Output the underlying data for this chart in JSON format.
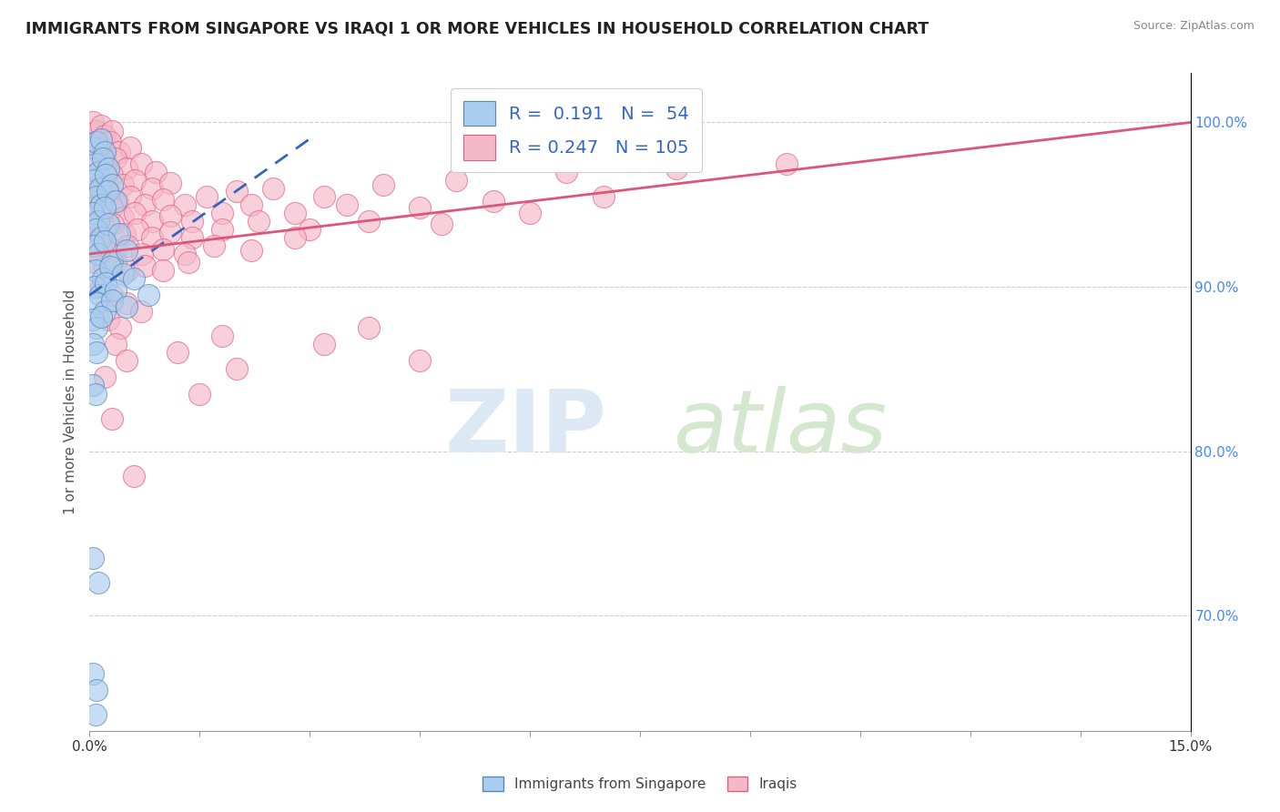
{
  "title": "IMMIGRANTS FROM SINGAPORE VS IRAQI 1 OR MORE VEHICLES IN HOUSEHOLD CORRELATION CHART",
  "source": "Source: ZipAtlas.com",
  "ylabel": "1 or more Vehicles in Household",
  "y_ticks_right": [
    70.0,
    80.0,
    90.0,
    100.0
  ],
  "y_ticks_right_labels": [
    "70.0%",
    "80.0%",
    "90.0%",
    "100.0%"
  ],
  "x_min": 0.0,
  "x_max": 15.0,
  "y_min": 63.0,
  "y_max": 103.0,
  "legend_entries": [
    {
      "label": "Immigrants from Singapore",
      "R": 0.191,
      "N": 54
    },
    {
      "label": "Iraqis",
      "R": 0.247,
      "N": 105
    }
  ],
  "singapore_color": "#aaccee",
  "singapore_edge": "#5588bb",
  "iraq_color": "#f5b8c8",
  "iraq_edge": "#e06080",
  "singapore_trend_color": "#3366bb",
  "iraq_trend_color": "#dd5577",
  "singapore_points": [
    [
      0.05,
      98.5
    ],
    [
      0.1,
      98.8
    ],
    [
      0.15,
      99.0
    ],
    [
      0.2,
      98.2
    ],
    [
      0.08,
      97.5
    ],
    [
      0.12,
      97.0
    ],
    [
      0.18,
      97.8
    ],
    [
      0.25,
      97.2
    ],
    [
      0.06,
      96.5
    ],
    [
      0.14,
      96.0
    ],
    [
      0.22,
      96.8
    ],
    [
      0.3,
      96.2
    ],
    [
      0.09,
      95.5
    ],
    [
      0.16,
      95.0
    ],
    [
      0.24,
      95.8
    ],
    [
      0.35,
      95.2
    ],
    [
      0.05,
      94.5
    ],
    [
      0.12,
      94.0
    ],
    [
      0.2,
      94.8
    ],
    [
      0.08,
      93.5
    ],
    [
      0.15,
      93.0
    ],
    [
      0.25,
      93.8
    ],
    [
      0.4,
      93.2
    ],
    [
      0.06,
      92.5
    ],
    [
      0.12,
      92.0
    ],
    [
      0.2,
      92.8
    ],
    [
      0.3,
      91.5
    ],
    [
      0.5,
      92.2
    ],
    [
      0.08,
      91.0
    ],
    [
      0.18,
      90.5
    ],
    [
      0.28,
      91.2
    ],
    [
      0.45,
      90.8
    ],
    [
      0.07,
      90.0
    ],
    [
      0.14,
      89.5
    ],
    [
      0.22,
      90.2
    ],
    [
      0.35,
      89.8
    ],
    [
      0.6,
      90.5
    ],
    [
      0.1,
      89.0
    ],
    [
      0.2,
      88.5
    ],
    [
      0.3,
      89.2
    ],
    [
      0.5,
      88.8
    ],
    [
      0.8,
      89.5
    ],
    [
      0.05,
      88.0
    ],
    [
      0.1,
      87.5
    ],
    [
      0.15,
      88.2
    ],
    [
      0.05,
      86.5
    ],
    [
      0.1,
      86.0
    ],
    [
      0.05,
      84.0
    ],
    [
      0.08,
      83.5
    ],
    [
      0.05,
      73.5
    ],
    [
      0.12,
      72.0
    ],
    [
      0.05,
      66.5
    ],
    [
      0.1,
      65.5
    ],
    [
      0.08,
      64.0
    ]
  ],
  "iraq_points": [
    [
      0.05,
      100.0
    ],
    [
      0.1,
      99.5
    ],
    [
      0.15,
      99.8
    ],
    [
      0.2,
      99.2
    ],
    [
      0.3,
      99.5
    ],
    [
      0.08,
      98.8
    ],
    [
      0.18,
      98.5
    ],
    [
      0.28,
      98.8
    ],
    [
      0.4,
      98.2
    ],
    [
      0.55,
      98.5
    ],
    [
      0.12,
      97.8
    ],
    [
      0.22,
      97.5
    ],
    [
      0.35,
      97.8
    ],
    [
      0.5,
      97.2
    ],
    [
      0.7,
      97.5
    ],
    [
      0.9,
      97.0
    ],
    [
      0.08,
      96.8
    ],
    [
      0.18,
      96.5
    ],
    [
      0.3,
      96.8
    ],
    [
      0.45,
      96.2
    ],
    [
      0.62,
      96.5
    ],
    [
      0.85,
      96.0
    ],
    [
      1.1,
      96.3
    ],
    [
      0.06,
      95.8
    ],
    [
      0.15,
      95.5
    ],
    [
      0.25,
      95.8
    ],
    [
      0.38,
      95.2
    ],
    [
      0.55,
      95.5
    ],
    [
      0.75,
      95.0
    ],
    [
      1.0,
      95.3
    ],
    [
      1.3,
      95.0
    ],
    [
      1.6,
      95.5
    ],
    [
      2.0,
      95.8
    ],
    [
      2.5,
      96.0
    ],
    [
      3.2,
      95.5
    ],
    [
      4.0,
      96.2
    ],
    [
      5.0,
      96.5
    ],
    [
      6.5,
      97.0
    ],
    [
      8.0,
      97.2
    ],
    [
      9.5,
      97.5
    ],
    [
      0.08,
      94.8
    ],
    [
      0.18,
      94.5
    ],
    [
      0.3,
      94.8
    ],
    [
      0.45,
      94.2
    ],
    [
      0.62,
      94.5
    ],
    [
      0.85,
      94.0
    ],
    [
      1.1,
      94.3
    ],
    [
      1.4,
      94.0
    ],
    [
      1.8,
      94.5
    ],
    [
      2.2,
      95.0
    ],
    [
      2.8,
      94.5
    ],
    [
      3.5,
      95.0
    ],
    [
      4.5,
      94.8
    ],
    [
      5.5,
      95.2
    ],
    [
      7.0,
      95.5
    ],
    [
      0.08,
      93.8
    ],
    [
      0.2,
      93.5
    ],
    [
      0.32,
      93.8
    ],
    [
      0.48,
      93.2
    ],
    [
      0.65,
      93.5
    ],
    [
      0.85,
      93.0
    ],
    [
      1.1,
      93.3
    ],
    [
      1.4,
      93.0
    ],
    [
      1.8,
      93.5
    ],
    [
      2.3,
      94.0
    ],
    [
      3.0,
      93.5
    ],
    [
      3.8,
      94.0
    ],
    [
      4.8,
      93.8
    ],
    [
      6.0,
      94.5
    ],
    [
      0.1,
      92.8
    ],
    [
      0.22,
      92.5
    ],
    [
      0.35,
      92.2
    ],
    [
      0.52,
      92.5
    ],
    [
      0.72,
      92.0
    ],
    [
      1.0,
      92.3
    ],
    [
      1.3,
      92.0
    ],
    [
      1.7,
      92.5
    ],
    [
      2.2,
      92.2
    ],
    [
      2.8,
      93.0
    ],
    [
      0.08,
      91.5
    ],
    [
      0.2,
      91.2
    ],
    [
      0.35,
      91.5
    ],
    [
      0.52,
      91.0
    ],
    [
      0.75,
      91.3
    ],
    [
      1.0,
      91.0
    ],
    [
      1.35,
      91.5
    ],
    [
      0.15,
      90.0
    ],
    [
      0.3,
      89.5
    ],
    [
      0.5,
      89.0
    ],
    [
      0.7,
      88.5
    ],
    [
      0.25,
      88.0
    ],
    [
      0.42,
      87.5
    ],
    [
      1.8,
      87.0
    ],
    [
      3.8,
      87.5
    ],
    [
      0.35,
      86.5
    ],
    [
      1.2,
      86.0
    ],
    [
      3.2,
      86.5
    ],
    [
      0.5,
      85.5
    ],
    [
      2.0,
      85.0
    ],
    [
      4.5,
      85.5
    ],
    [
      0.2,
      84.5
    ],
    [
      1.5,
      83.5
    ],
    [
      0.3,
      82.0
    ],
    [
      0.6,
      78.5
    ]
  ]
}
